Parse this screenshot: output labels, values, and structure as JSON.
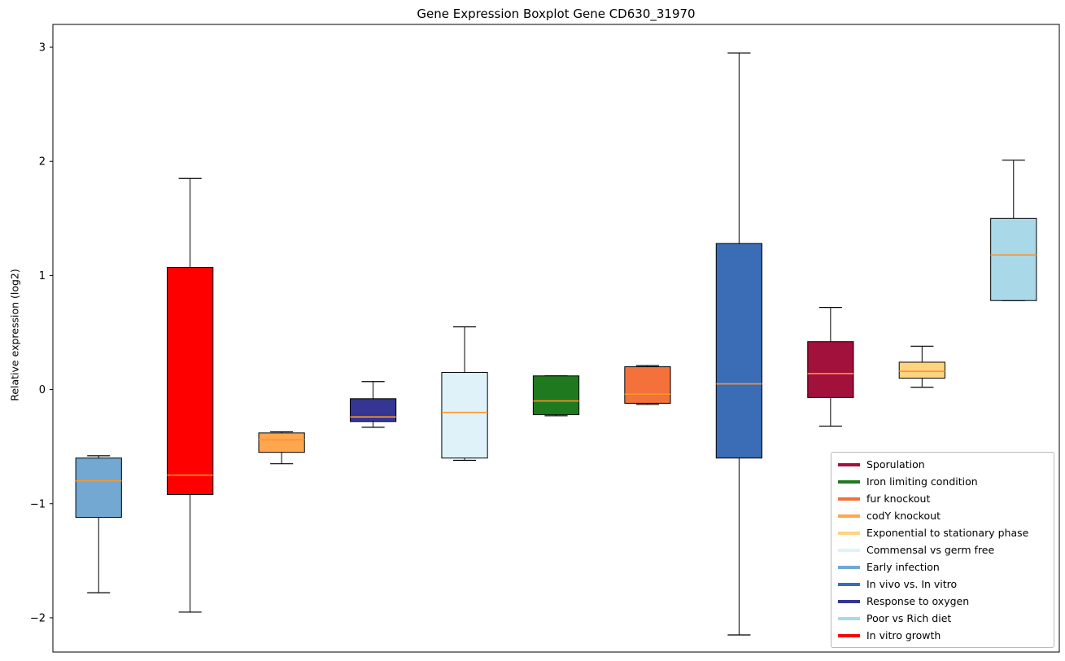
{
  "title": "Gene Expression Boxplot Gene CD630_31970",
  "ylabel": "Relative expression (log2)",
  "chart_data": {
    "type": "boxplot",
    "title": "Gene Expression Boxplot Gene CD630_31970",
    "xlabel": "",
    "ylabel": "Relative expression (log2)",
    "ylim": [
      -2.3,
      3.2
    ],
    "yticks": [
      -2,
      -1,
      0,
      1,
      2,
      3
    ],
    "grid": false,
    "legend_position": "lower right",
    "median_color": "#ff9429",
    "frame_color": "#000000",
    "boxes": [
      {
        "label": "Early infection",
        "color": "#73a8d3",
        "whislo": -1.78,
        "q1": -1.12,
        "med": -0.8,
        "q3": -0.6,
        "whishi": -0.58
      },
      {
        "label": "In vitro growth",
        "color": "#ff0000",
        "whislo": -1.95,
        "q1": -0.92,
        "med": -0.75,
        "q3": 1.07,
        "whishi": 1.85
      },
      {
        "label": "codY knockout",
        "color": "#ffa64f",
        "whislo": -0.65,
        "q1": -0.55,
        "med": -0.44,
        "q3": -0.38,
        "whishi": -0.37
      },
      {
        "label": "Response to oxygen",
        "color": "#353594",
        "whislo": -0.33,
        "q1": -0.28,
        "med": -0.24,
        "q3": -0.08,
        "whishi": 0.07
      },
      {
        "label": "Commensal vs germ free",
        "color": "#dff2f9",
        "whislo": -0.62,
        "q1": -0.6,
        "med": -0.2,
        "q3": 0.15,
        "whishi": 0.55
      },
      {
        "label": "Iron limiting condition",
        "color": "#1f7a1f",
        "whislo": -0.23,
        "q1": -0.22,
        "med": -0.1,
        "q3": 0.12,
        "whishi": 0.12
      },
      {
        "label": "fur knockout",
        "color": "#f4713b",
        "whislo": -0.13,
        "q1": -0.12,
        "med": -0.04,
        "q3": 0.2,
        "whishi": 0.21
      },
      {
        "label": "In vivo vs. In vitro",
        "color": "#3a6db5",
        "whislo": -2.15,
        "q1": -0.6,
        "med": 0.05,
        "q3": 1.28,
        "whishi": 2.95
      },
      {
        "label": "Sporulation",
        "color": "#a2113c",
        "whislo": -0.32,
        "q1": -0.07,
        "med": 0.14,
        "q3": 0.42,
        "whishi": 0.72
      },
      {
        "label": "Exponential to stationary phase",
        "color": "#ffd37f",
        "whislo": 0.02,
        "q1": 0.1,
        "med": 0.16,
        "q3": 0.24,
        "whishi": 0.38
      },
      {
        "label": "Poor vs Rich diet",
        "color": "#a9d9e8",
        "whislo": 0.78,
        "q1": 0.78,
        "med": 1.18,
        "q3": 1.5,
        "whishi": 2.01
      }
    ],
    "legend": [
      {
        "label": "Sporulation",
        "color": "#a2113c"
      },
      {
        "label": "Iron limiting condition",
        "color": "#1f7a1f"
      },
      {
        "label": "fur knockout",
        "color": "#f4713b"
      },
      {
        "label": "codY knockout",
        "color": "#ffa64f"
      },
      {
        "label": "Exponential to stationary phase",
        "color": "#ffd37f"
      },
      {
        "label": "Commensal vs germ free",
        "color": "#dff2f9"
      },
      {
        "label": "Early infection",
        "color": "#73a8d3"
      },
      {
        "label": "In vivo vs. In vitro",
        "color": "#3a6db5"
      },
      {
        "label": "Response to oxygen",
        "color": "#353594"
      },
      {
        "label": "Poor vs Rich diet",
        "color": "#a9d9e8"
      },
      {
        "label": "In vitro growth",
        "color": "#ff0000"
      }
    ]
  }
}
